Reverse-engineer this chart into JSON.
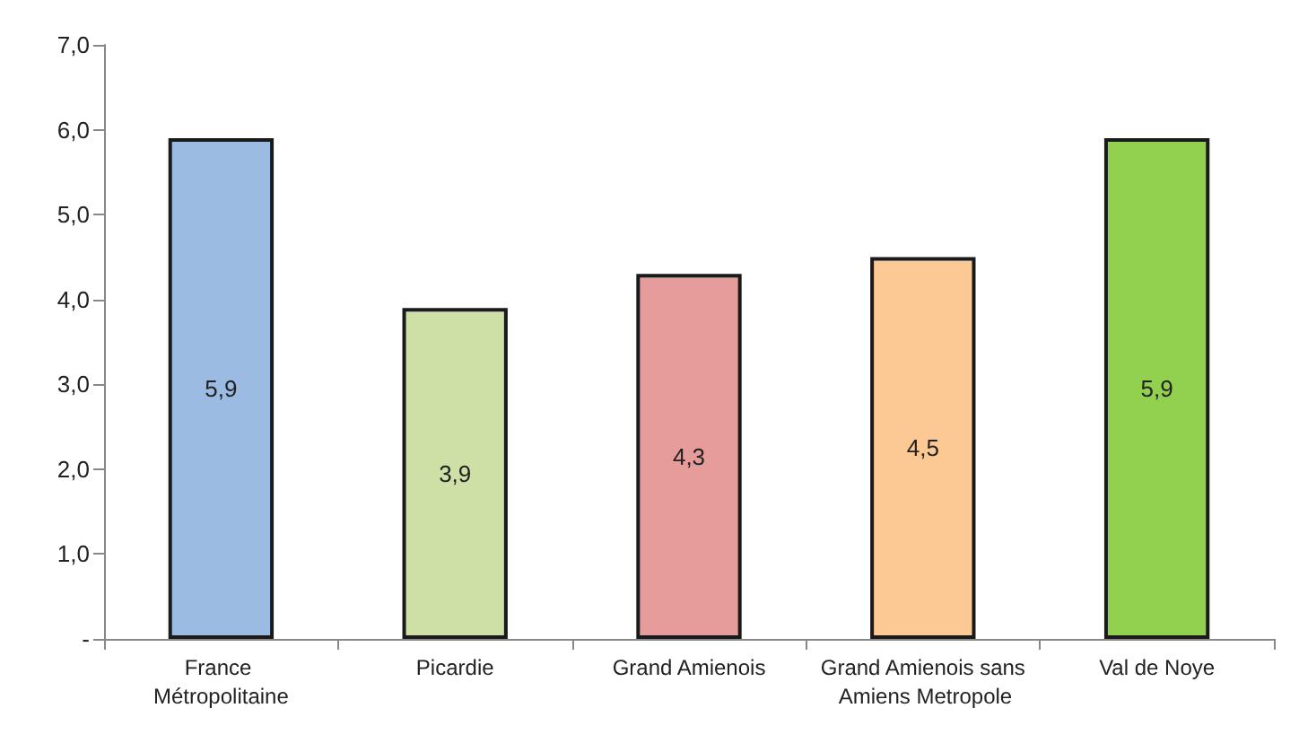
{
  "chart_data": {
    "type": "bar",
    "categories": [
      "France Métropolitaine",
      "Picardie",
      "Grand Amienois",
      "Grand Amienois sans Amiens Metropole",
      "Val de Noye"
    ],
    "values": [
      5.9,
      3.9,
      4.3,
      4.5,
      5.9
    ],
    "value_labels": [
      "5,9",
      "3,9",
      "4,3",
      "4,5",
      "5,9"
    ],
    "colors": [
      "#9bbbe3",
      "#cfe0a6",
      "#e59c9a",
      "#fcc994",
      "#92d050"
    ],
    "ylim": [
      0,
      7
    ],
    "yticks": [
      {
        "value": 0,
        "label": "-"
      },
      {
        "value": 1,
        "label": "1,0"
      },
      {
        "value": 2,
        "label": "2,0"
      },
      {
        "value": 3,
        "label": "3,0"
      },
      {
        "value": 4,
        "label": "4,0"
      },
      {
        "value": 5,
        "label": "5,0"
      },
      {
        "value": 6,
        "label": "6,0"
      },
      {
        "value": 7,
        "label": "7,0"
      }
    ],
    "grid": false
  }
}
